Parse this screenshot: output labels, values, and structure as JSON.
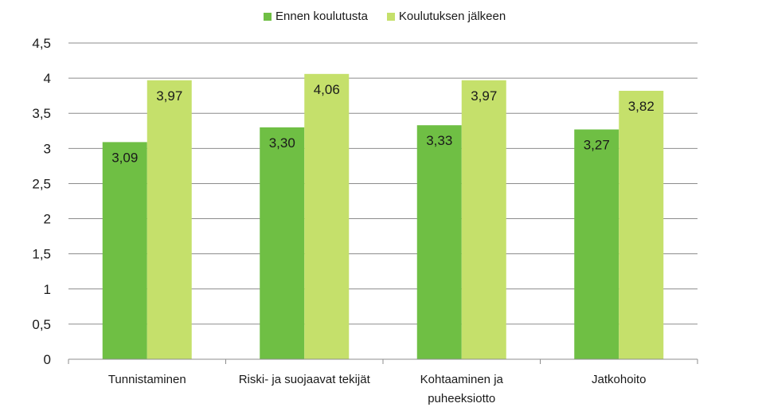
{
  "chart_data": {
    "type": "bar",
    "title": "",
    "xlabel": "",
    "ylabel": "",
    "categories": [
      [
        "Tunnistaminen"
      ],
      [
        "Riski- ja suojaavat tekijät"
      ],
      [
        "Kohtaaminen ja",
        "puheeksiotto"
      ],
      [
        "Jatkohoito"
      ]
    ],
    "series": [
      {
        "name": "Ennen koulutusta",
        "color": "#6fbf44",
        "values": [
          3.09,
          3.3,
          3.33,
          3.27
        ],
        "labels": [
          "3,09",
          "3,30",
          "3,33",
          "3,27"
        ]
      },
      {
        "name": "Koulutuksen jälkeen",
        "color": "#c5e06b",
        "values": [
          3.97,
          4.06,
          3.97,
          3.82
        ],
        "labels": [
          "3,97",
          "4,06",
          "3,97",
          "3,82"
        ]
      }
    ],
    "ylim": [
      0,
      4.5
    ],
    "yticks": [
      0,
      0.5,
      1,
      1.5,
      2,
      2.5,
      3,
      3.5,
      4,
      4.5
    ],
    "ytick_labels": [
      "0",
      "0,5",
      "1",
      "1,5",
      "2",
      "2,5",
      "3",
      "3,5",
      "4",
      "4,5"
    ],
    "grid": true,
    "legend_position": "top-center"
  }
}
